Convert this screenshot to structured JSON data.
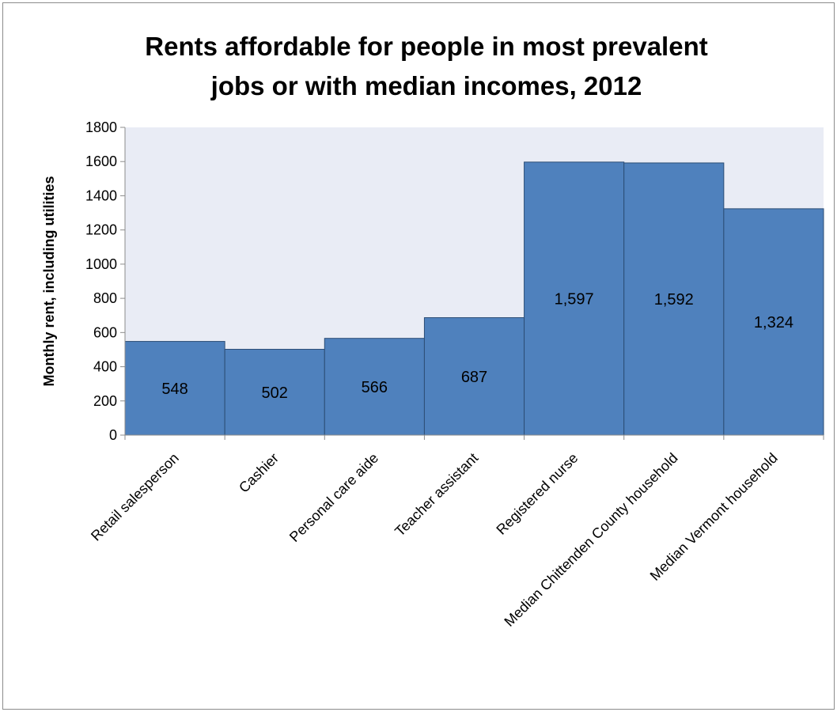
{
  "chart_data": {
    "type": "bar",
    "title_line1": "Rents affordable for people in most prevalent",
    "title_line2": "jobs or with median incomes, 2012",
    "xlabel": "",
    "ylabel": "Monthly rent, including utilities",
    "ylim": [
      0,
      1800
    ],
    "yticks": [
      0,
      200,
      400,
      600,
      800,
      1000,
      1200,
      1400,
      1600,
      1800
    ],
    "ytick_labels": [
      "0",
      "200",
      "400",
      "600",
      "800",
      "1000",
      "1200",
      "1400",
      "1600",
      "1800"
    ],
    "categories": [
      "Retail salesperson",
      "Cashier",
      "Personal care aide",
      "Teacher assistant",
      "Registered nurse",
      "Median Chittenden County household",
      "Median Vermont household"
    ],
    "values": [
      548,
      502,
      566,
      687,
      1597,
      1592,
      1324
    ],
    "data_labels": [
      "548",
      "502",
      "566",
      "687",
      "1,597",
      "1,592",
      "1,324"
    ],
    "grid": false,
    "legend": "none",
    "colors": {
      "bar_fill": "#4f81bd",
      "bar_stroke": "#2c4d75",
      "plot_background": "#e9ecf5",
      "axis": "#8c8c8c"
    }
  }
}
